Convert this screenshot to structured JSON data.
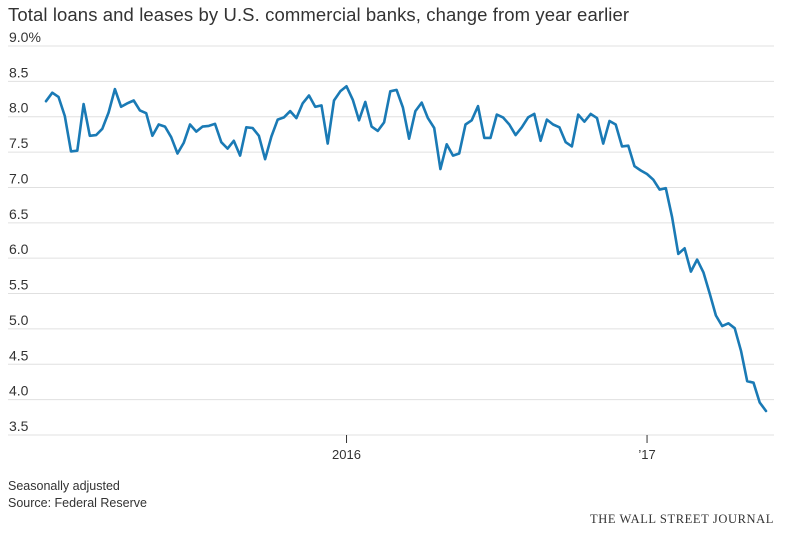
{
  "chart_data": {
    "type": "line",
    "title": "Total loans and leases by U.S. commercial banks, change from year earlier",
    "xlabel": "",
    "ylabel": "",
    "ylim": [
      3.5,
      9.0
    ],
    "y_ticks": [
      "9.0%",
      "8.5",
      "8.0",
      "7.5",
      "7.0",
      "6.5",
      "6.0",
      "5.5",
      "5.0",
      "4.5",
      "4.0",
      "3.5"
    ],
    "x_ticks": [
      {
        "label": "2016",
        "index": 48
      },
      {
        "label": "’17",
        "index": 96
      }
    ],
    "grid": true,
    "line_color": "#1a7ab5",
    "series": [
      {
        "values": [
          8.22,
          8.34,
          8.28,
          8.01,
          7.51,
          7.52,
          8.18,
          7.73,
          7.74,
          7.83,
          8.06,
          8.39,
          8.14,
          8.19,
          8.23,
          8.09,
          8.05,
          7.73,
          7.89,
          7.86,
          7.71,
          7.48,
          7.63,
          7.89,
          7.79,
          7.86,
          7.87,
          7.9,
          7.64,
          7.55,
          7.66,
          7.45,
          7.85,
          7.84,
          7.73,
          7.4,
          7.72,
          7.96,
          7.99,
          8.08,
          7.98,
          8.19,
          8.3,
          8.14,
          8.16,
          7.62,
          8.23,
          8.36,
          8.43,
          8.24,
          7.95,
          8.21,
          7.86,
          7.8,
          7.92,
          8.36,
          8.38,
          8.13,
          7.69,
          8.08,
          8.2,
          7.98,
          7.84,
          7.26,
          7.61,
          7.45,
          7.48,
          7.89,
          7.95,
          8.15,
          7.7,
          7.7,
          8.03,
          7.99,
          7.89,
          7.74,
          7.85,
          7.99,
          8.04,
          7.66,
          7.96,
          7.89,
          7.85,
          7.64,
          7.58,
          8.03,
          7.93,
          8.04,
          7.98,
          7.62,
          7.94,
          7.89,
          7.58,
          7.59,
          7.3,
          7.24,
          7.19,
          7.11,
          6.97,
          6.99,
          6.58,
          6.06,
          6.14,
          5.81,
          5.98,
          5.8,
          5.5,
          5.19,
          5.04,
          5.08,
          5.01,
          4.69,
          4.26,
          4.24,
          3.96,
          3.84
        ]
      }
    ]
  },
  "footnotes": {
    "note": "Seasonally adjusted",
    "source": "Source: Federal Reserve"
  },
  "branding": "THE WALL STREET JOURNAL"
}
